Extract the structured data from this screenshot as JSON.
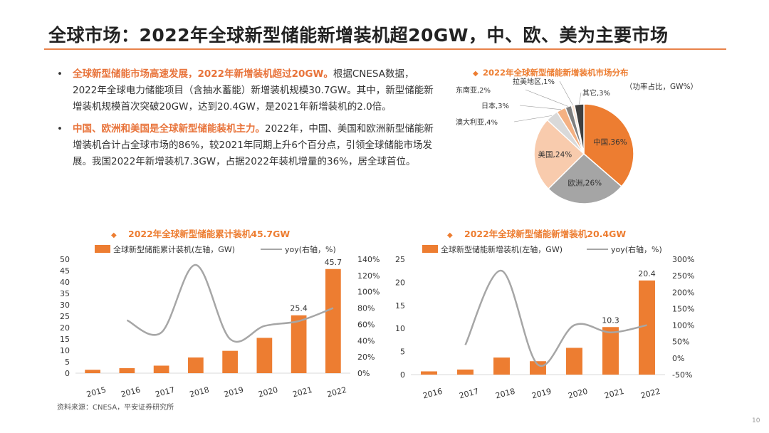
{
  "slide": {
    "title": "全球市场：2022年全球新型储能新增装机超20GW，中、欧、美为主要市场",
    "source": "资料来源：CNESA，平安证券研究所",
    "page_number": "10"
  },
  "bullets": [
    {
      "marker": "•",
      "highlight": "全球新型储能市场高速发展，2022年新增装机超过20GW。",
      "text": "根据CNESA数据，2022年全球电力储能项目（含抽水蓄能）新增装机规模30.7GW。其中，新型储能新增装机规模首次突破20GW，达到20.4GW，是2021年新增装机的2.0倍。"
    },
    {
      "marker": "•",
      "highlight": "中国、欧洲和美国是全球新型储能装机主力。",
      "text": "2022年，中国、美国和欧洲新型储能新增装机合计占全球市场的86%，较2021年同期上升6个百分点，引领全球储能市场发展。我国2022年新增装机7.3GW，占据2022年装机增量的36%，居全球首位。"
    }
  ],
  "colors": {
    "accent": "#e8834a",
    "bar": "#ed7d31",
    "line": "#a6a6a6"
  },
  "chart_data": [
    {
      "id": "pie",
      "type": "pie",
      "title": "2022年全球新型储能新增装机市场分布",
      "subtitle": "（功率占比，GW%）",
      "slices": [
        {
          "label": "中国",
          "value": 36,
          "display": "中国,36%",
          "color": "#ed7d31"
        },
        {
          "label": "欧洲",
          "value": 26,
          "display": "欧洲,26%",
          "color": "#a5a5a5"
        },
        {
          "label": "美国",
          "value": 24,
          "display": "美国,24%",
          "color": "#f8cbad"
        },
        {
          "label": "澳大利亚",
          "value": 4,
          "display": "澳大利亚,4%",
          "color": "#d9d9d9"
        },
        {
          "label": "日本",
          "value": 3,
          "display": "日本,3%",
          "color": "#f4b183"
        },
        {
          "label": "东南亚",
          "value": 2,
          "display": "东南亚,2%",
          "color": "#7f7f7f"
        },
        {
          "label": "拉美地区",
          "value": 1,
          "display": "拉美地区,1%",
          "color": "#fbe5d6"
        },
        {
          "label": "其它",
          "value": 3,
          "display": "其它,3%",
          "color": "#404040"
        }
      ]
    },
    {
      "id": "cumulative",
      "type": "bar",
      "title": "2022年全球新型储能累计装机45.7GW",
      "categories": [
        "2015",
        "2016",
        "2017",
        "2018",
        "2019",
        "2020",
        "2021",
        "2022"
      ],
      "series": [
        {
          "name": "全球新型储能累计装机(左轴，GW)",
          "type": "bar",
          "axis": "left",
          "values": [
            1.5,
            2.2,
            3.3,
            6.9,
            9.8,
            15.5,
            25.4,
            45.7
          ]
        },
        {
          "name": "yoy(右轴，%)",
          "type": "line",
          "axis": "right",
          "values": [
            null,
            65,
            50,
            133,
            42,
            58,
            64,
            80
          ]
        }
      ],
      "data_labels": [
        {
          "index": 6,
          "text": "25.4"
        },
        {
          "index": 7,
          "text": "45.7"
        }
      ],
      "ylim_left": [
        0,
        50
      ],
      "yticks_left": [
        "0",
        "5",
        "10",
        "15",
        "20",
        "25",
        "30",
        "35",
        "40",
        "45",
        "50"
      ],
      "ylim_right": [
        0,
        140
      ],
      "yticks_right": [
        "0%",
        "20%",
        "40%",
        "60%",
        "80%",
        "100%",
        "120%",
        "140%"
      ]
    },
    {
      "id": "new",
      "type": "bar",
      "title": "2022年全球新型储能新增装机20.4GW",
      "categories": [
        "2016",
        "2017",
        "2018",
        "2019",
        "2020",
        "2021",
        "2022"
      ],
      "series": [
        {
          "name": "全球新型储能新增装机(左轴，GW)",
          "type": "bar",
          "axis": "left",
          "values": [
            0.7,
            1.1,
            3.7,
            2.9,
            5.8,
            10.3,
            20.4
          ]
        },
        {
          "name": "yoy(右轴，%)",
          "type": "line",
          "axis": "right",
          "values": [
            null,
            40,
            265,
            -20,
            100,
            78,
            100
          ]
        }
      ],
      "data_labels": [
        {
          "index": 5,
          "text": "10.3"
        },
        {
          "index": 6,
          "text": "20.4"
        }
      ],
      "ylim_left": [
        0,
        25
      ],
      "yticks_left": [
        "0",
        "5",
        "10",
        "15",
        "20",
        "25"
      ],
      "ylim_right": [
        -50,
        300
      ],
      "yticks_right": [
        "-50%",
        "0%",
        "50%",
        "100%",
        "150%",
        "200%",
        "250%",
        "300%"
      ]
    }
  ]
}
